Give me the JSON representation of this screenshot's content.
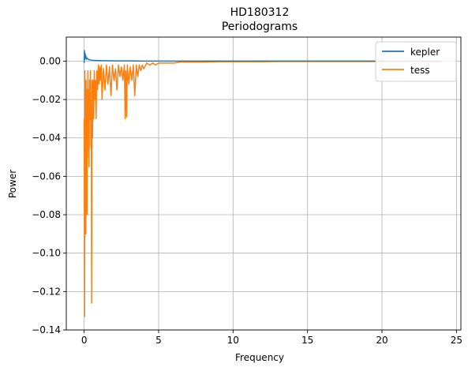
{
  "chart_data": {
    "type": "line",
    "title": "HD180312",
    "subtitle": "Periodograms",
    "xlabel": "Frequency",
    "ylabel": "Power",
    "xlim": [
      -1.2,
      25.3
    ],
    "ylim": [
      -0.14,
      0.0125
    ],
    "xticks": [
      0,
      5,
      10,
      15,
      20,
      25
    ],
    "yticks": [
      0.0,
      -0.02,
      -0.04,
      -0.06,
      -0.08,
      -0.1,
      -0.12,
      -0.14
    ],
    "xtick_labels": [
      "0",
      "5",
      "10",
      "15",
      "20",
      "25"
    ],
    "ytick_labels": [
      "0.00",
      "−0.02",
      "−0.04",
      "−0.06",
      "−0.08",
      "−0.10",
      "−0.12",
      "−0.14"
    ],
    "grid": true,
    "legend_position": "top-right",
    "series": [
      {
        "name": "kepler",
        "color": "#1f77b4",
        "x": [
          0.0,
          0.02,
          0.04,
          0.06,
          0.08,
          0.1,
          0.15,
          0.2,
          0.3,
          0.5,
          0.8,
          1.2,
          2.0,
          3.0,
          4.0,
          5.0,
          8.0,
          12.0,
          16.0,
          20.0,
          24.0
        ],
        "y": [
          -0.001,
          0.0055,
          0.001,
          0.004,
          0.0015,
          0.003,
          0.001,
          0.0015,
          0.0008,
          0.0005,
          0.0003,
          0.0002,
          0.0001,
          0.0001,
          0.0,
          0.0,
          0.0,
          0.0,
          0.0,
          0.0,
          0.0
        ]
      },
      {
        "name": "tess",
        "color": "#ff7f0e",
        "x": [
          0.0,
          0.03,
          0.05,
          0.07,
          0.09,
          0.11,
          0.13,
          0.15,
          0.17,
          0.19,
          0.21,
          0.23,
          0.25,
          0.27,
          0.3,
          0.33,
          0.36,
          0.39,
          0.42,
          0.45,
          0.48,
          0.5,
          0.53,
          0.56,
          0.6,
          0.64,
          0.68,
          0.72,
          0.76,
          0.8,
          0.85,
          0.9,
          0.95,
          1.0,
          1.05,
          1.1,
          1.15,
          1.2,
          1.3,
          1.4,
          1.5,
          1.6,
          1.7,
          1.8,
          1.9,
          2.0,
          2.1,
          2.2,
          2.3,
          2.4,
          2.5,
          2.6,
          2.7,
          2.75,
          2.8,
          2.85,
          2.9,
          3.0,
          3.1,
          3.2,
          3.3,
          3.4,
          3.5,
          3.6,
          3.7,
          3.8,
          3.9,
          4.0,
          4.2,
          4.4,
          4.6,
          4.8,
          5.0,
          5.5,
          6.0,
          6.5,
          7.0,
          7.5,
          8.0,
          9.0,
          10.0,
          11.0,
          12.0,
          13.0,
          14.0,
          15.0,
          16.0,
          17.0,
          18.0,
          19.0,
          20.0,
          21.0,
          22.0,
          23.0,
          24.0
        ],
        "y": [
          -0.03,
          -0.133,
          -0.005,
          -0.04,
          -0.02,
          -0.09,
          -0.01,
          -0.055,
          -0.02,
          -0.08,
          -0.015,
          -0.05,
          -0.005,
          -0.035,
          -0.015,
          -0.055,
          -0.01,
          -0.03,
          -0.005,
          -0.045,
          -0.02,
          -0.126,
          -0.01,
          -0.04,
          -0.01,
          -0.03,
          -0.005,
          -0.02,
          -0.01,
          -0.03,
          -0.005,
          -0.015,
          -0.002,
          -0.012,
          -0.003,
          -0.01,
          -0.002,
          -0.02,
          -0.004,
          -0.015,
          -0.002,
          -0.012,
          -0.003,
          -0.018,
          -0.002,
          -0.01,
          -0.004,
          -0.015,
          -0.002,
          -0.008,
          -0.003,
          -0.01,
          -0.002,
          -0.03,
          -0.005,
          -0.029,
          -0.002,
          -0.012,
          -0.003,
          -0.01,
          -0.002,
          -0.018,
          -0.002,
          -0.008,
          -0.002,
          -0.005,
          -0.002,
          -0.004,
          -0.001,
          -0.002,
          -0.001,
          -0.002,
          -0.001,
          -0.001,
          -0.001,
          -0.0005,
          -0.0005,
          -0.0005,
          -0.0005,
          -0.0003,
          -0.0003,
          -0.0003,
          -0.0003,
          -0.0002,
          -0.0002,
          -0.0002,
          -0.0002,
          -0.0002,
          -0.0002,
          -0.0002,
          -0.0002,
          -0.0002,
          -0.0002,
          -0.0002,
          -0.0002
        ]
      }
    ]
  }
}
